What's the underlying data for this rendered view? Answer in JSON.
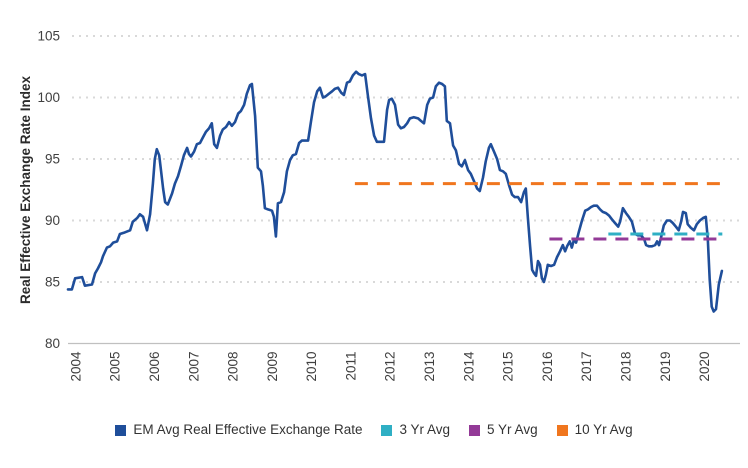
{
  "figure": {
    "y_axis_title": "Real Effective Exchange Rate Index"
  },
  "colors": {
    "main_line": "#1F4E9A",
    "avg_3yr": "#2FAFC4",
    "avg_5yr": "#933A97",
    "avg_10yr": "#F0761E",
    "axis_text": "#404040",
    "gridline": "#D9D9D9",
    "axis_line": "#C0C0C0"
  },
  "chart_data": {
    "type": "line",
    "title": "",
    "xlabel": "",
    "ylabel": "Real Effective Exchange Rate Index",
    "ylim": [
      80,
      105
    ],
    "xlim": [
      2003.8,
      2020.9
    ],
    "y_ticks": [
      80,
      85,
      90,
      95,
      100,
      105
    ],
    "x_ticks": [
      2004,
      2005,
      2006,
      2007,
      2008,
      2009,
      2010,
      2011,
      2012,
      2013,
      2014,
      2015,
      2016,
      2017,
      2018,
      2019,
      2020
    ],
    "grid": "horizontal-dotted",
    "legend_position": "bottom",
    "series": [
      {
        "name": "EM Avg Real Effective Exchange Rate",
        "kind": "line",
        "color": "#1F4E9A",
        "points": [
          [
            2003.8,
            84.4
          ],
          [
            2003.9,
            84.4
          ],
          [
            2003.98,
            85.3
          ],
          [
            2004.16,
            85.4
          ],
          [
            2004.23,
            84.7
          ],
          [
            2004.41,
            84.8
          ],
          [
            2004.49,
            85.7
          ],
          [
            2004.56,
            86.1
          ],
          [
            2004.64,
            86.6
          ],
          [
            2004.69,
            87.1
          ],
          [
            2004.79,
            87.8
          ],
          [
            2004.87,
            87.9
          ],
          [
            2004.95,
            88.2
          ],
          [
            2005.05,
            88.3
          ],
          [
            2005.12,
            88.9
          ],
          [
            2005.22,
            89.0
          ],
          [
            2005.3,
            89.1
          ],
          [
            2005.38,
            89.2
          ],
          [
            2005.45,
            89.9
          ],
          [
            2005.56,
            90.2
          ],
          [
            2005.63,
            90.5
          ],
          [
            2005.71,
            90.3
          ],
          [
            2005.81,
            89.2
          ],
          [
            2005.89,
            90.5
          ],
          [
            2005.96,
            93.0
          ],
          [
            2006.01,
            95.0
          ],
          [
            2006.06,
            95.8
          ],
          [
            2006.12,
            95.3
          ],
          [
            2006.17,
            94.0
          ],
          [
            2006.22,
            92.6
          ],
          [
            2006.27,
            91.5
          ],
          [
            2006.34,
            91.3
          ],
          [
            2006.45,
            92.2
          ],
          [
            2006.52,
            93.0
          ],
          [
            2006.6,
            93.6
          ],
          [
            2006.68,
            94.5
          ],
          [
            2006.75,
            95.3
          ],
          [
            2006.83,
            95.9
          ],
          [
            2006.88,
            95.4
          ],
          [
            2006.93,
            95.2
          ],
          [
            2007.01,
            95.6
          ],
          [
            2007.08,
            96.2
          ],
          [
            2007.16,
            96.3
          ],
          [
            2007.24,
            96.8
          ],
          [
            2007.31,
            97.2
          ],
          [
            2007.39,
            97.5
          ],
          [
            2007.46,
            97.9
          ],
          [
            2007.52,
            96.2
          ],
          [
            2007.59,
            95.9
          ],
          [
            2007.67,
            96.9
          ],
          [
            2007.74,
            97.4
          ],
          [
            2007.82,
            97.6
          ],
          [
            2007.9,
            98.0
          ],
          [
            2007.97,
            97.7
          ],
          [
            2008.05,
            98.0
          ],
          [
            2008.13,
            98.7
          ],
          [
            2008.2,
            98.9
          ],
          [
            2008.28,
            99.4
          ],
          [
            2008.35,
            100.3
          ],
          [
            2008.43,
            101.0
          ],
          [
            2008.48,
            101.1
          ],
          [
            2008.56,
            98.5
          ],
          [
            2008.63,
            94.3
          ],
          [
            2008.71,
            94.0
          ],
          [
            2008.76,
            92.8
          ],
          [
            2008.81,
            91.0
          ],
          [
            2008.89,
            90.9
          ],
          [
            2008.99,
            90.8
          ],
          [
            2009.04,
            90.3
          ],
          [
            2009.09,
            88.7
          ],
          [
            2009.14,
            91.4
          ],
          [
            2009.22,
            91.5
          ],
          [
            2009.3,
            92.3
          ],
          [
            2009.37,
            94.0
          ],
          [
            2009.45,
            94.9
          ],
          [
            2009.52,
            95.3
          ],
          [
            2009.6,
            95.4
          ],
          [
            2009.68,
            96.3
          ],
          [
            2009.75,
            96.5
          ],
          [
            2009.83,
            96.5
          ],
          [
            2009.91,
            96.5
          ],
          [
            2009.98,
            98.0
          ],
          [
            2010.06,
            99.6
          ],
          [
            2010.14,
            100.5
          ],
          [
            2010.21,
            100.8
          ],
          [
            2010.29,
            100.0
          ],
          [
            2010.36,
            100.1
          ],
          [
            2010.44,
            100.3
          ],
          [
            2010.52,
            100.5
          ],
          [
            2010.59,
            100.7
          ],
          [
            2010.67,
            100.8
          ],
          [
            2010.75,
            100.4
          ],
          [
            2010.82,
            100.2
          ],
          [
            2010.9,
            101.2
          ],
          [
            2010.97,
            101.3
          ],
          [
            2011.05,
            101.8
          ],
          [
            2011.13,
            102.1
          ],
          [
            2011.2,
            101.9
          ],
          [
            2011.28,
            101.8
          ],
          [
            2011.36,
            101.9
          ],
          [
            2011.43,
            100.2
          ],
          [
            2011.51,
            98.3
          ],
          [
            2011.59,
            96.9
          ],
          [
            2011.66,
            96.4
          ],
          [
            2011.74,
            96.4
          ],
          [
            2011.84,
            96.4
          ],
          [
            2011.92,
            99.0
          ],
          [
            2011.97,
            99.8
          ],
          [
            2012.04,
            99.9
          ],
          [
            2012.12,
            99.4
          ],
          [
            2012.2,
            97.8
          ],
          [
            2012.27,
            97.5
          ],
          [
            2012.35,
            97.6
          ],
          [
            2012.43,
            97.9
          ],
          [
            2012.5,
            98.3
          ],
          [
            2012.6,
            98.4
          ],
          [
            2012.71,
            98.3
          ],
          [
            2012.78,
            98.1
          ],
          [
            2012.86,
            97.9
          ],
          [
            2012.94,
            99.4
          ],
          [
            2013.01,
            99.9
          ],
          [
            2013.09,
            100.0
          ],
          [
            2013.16,
            100.9
          ],
          [
            2013.24,
            101.2
          ],
          [
            2013.32,
            101.1
          ],
          [
            2013.39,
            100.9
          ],
          [
            2013.44,
            98.1
          ],
          [
            2013.52,
            97.9
          ],
          [
            2013.6,
            96.1
          ],
          [
            2013.67,
            95.7
          ],
          [
            2013.75,
            94.6
          ],
          [
            2013.82,
            94.4
          ],
          [
            2013.9,
            94.9
          ],
          [
            2013.98,
            94.1
          ],
          [
            2014.05,
            93.8
          ],
          [
            2014.13,
            93.2
          ],
          [
            2014.21,
            92.6
          ],
          [
            2014.28,
            92.4
          ],
          [
            2014.36,
            93.5
          ],
          [
            2014.43,
            94.8
          ],
          [
            2014.51,
            95.9
          ],
          [
            2014.56,
            96.2
          ],
          [
            2014.64,
            95.6
          ],
          [
            2014.72,
            95.0
          ],
          [
            2014.79,
            94.1
          ],
          [
            2014.87,
            94.0
          ],
          [
            2014.94,
            93.8
          ],
          [
            2015.02,
            92.9
          ],
          [
            2015.1,
            92.1
          ],
          [
            2015.17,
            91.9
          ],
          [
            2015.25,
            91.9
          ],
          [
            2015.33,
            91.5
          ],
          [
            2015.4,
            92.3
          ],
          [
            2015.45,
            92.6
          ],
          [
            2015.5,
            90.3
          ],
          [
            2015.56,
            87.9
          ],
          [
            2015.61,
            86.0
          ],
          [
            2015.66,
            85.7
          ],
          [
            2015.71,
            85.5
          ],
          [
            2015.76,
            86.7
          ],
          [
            2015.81,
            86.4
          ],
          [
            2015.86,
            85.3
          ],
          [
            2015.91,
            85.0
          ],
          [
            2015.96,
            85.6
          ],
          [
            2016.01,
            86.4
          ],
          [
            2016.09,
            86.3
          ],
          [
            2016.17,
            86.4
          ],
          [
            2016.24,
            87.0
          ],
          [
            2016.32,
            87.5
          ],
          [
            2016.39,
            88.0
          ],
          [
            2016.45,
            87.5
          ],
          [
            2016.5,
            87.9
          ],
          [
            2016.57,
            88.3
          ],
          [
            2016.62,
            87.8
          ],
          [
            2016.68,
            88.5
          ],
          [
            2016.73,
            88.2
          ],
          [
            2016.8,
            89.1
          ],
          [
            2016.88,
            90.0
          ],
          [
            2016.96,
            90.8
          ],
          [
            2017.03,
            90.9
          ],
          [
            2017.11,
            91.1
          ],
          [
            2017.18,
            91.2
          ],
          [
            2017.26,
            91.2
          ],
          [
            2017.34,
            90.9
          ],
          [
            2017.41,
            90.7
          ],
          [
            2017.49,
            90.6
          ],
          [
            2017.57,
            90.4
          ],
          [
            2017.64,
            90.1
          ],
          [
            2017.72,
            89.8
          ],
          [
            2017.8,
            89.5
          ],
          [
            2017.85,
            89.9
          ],
          [
            2017.92,
            91.0
          ],
          [
            2018.0,
            90.6
          ],
          [
            2018.07,
            90.3
          ],
          [
            2018.15,
            89.9
          ],
          [
            2018.23,
            88.9
          ],
          [
            2018.3,
            88.8
          ],
          [
            2018.38,
            88.8
          ],
          [
            2018.46,
            88.5
          ],
          [
            2018.51,
            88.0
          ],
          [
            2018.58,
            87.9
          ],
          [
            2018.66,
            87.9
          ],
          [
            2018.74,
            88.0
          ],
          [
            2018.79,
            88.3
          ],
          [
            2018.84,
            88.0
          ],
          [
            2018.89,
            88.6
          ],
          [
            2018.96,
            89.6
          ],
          [
            2019.04,
            90.0
          ],
          [
            2019.12,
            90.0
          ],
          [
            2019.19,
            89.8
          ],
          [
            2019.27,
            89.5
          ],
          [
            2019.34,
            89.2
          ],
          [
            2019.4,
            89.9
          ],
          [
            2019.45,
            90.7
          ],
          [
            2019.52,
            90.6
          ],
          [
            2019.57,
            89.7
          ],
          [
            2019.65,
            89.4
          ],
          [
            2019.73,
            89.2
          ],
          [
            2019.8,
            89.7
          ],
          [
            2019.88,
            90.0
          ],
          [
            2019.96,
            90.2
          ],
          [
            2020.03,
            90.3
          ],
          [
            2020.08,
            88.5
          ],
          [
            2020.13,
            85.2
          ],
          [
            2020.18,
            83.0
          ],
          [
            2020.23,
            82.6
          ],
          [
            2020.29,
            82.8
          ],
          [
            2020.36,
            84.8
          ],
          [
            2020.44,
            85.9
          ]
        ]
      },
      {
        "name": "3 Yr Avg",
        "kind": "dashed-constant",
        "color": "#2FAFC4",
        "value": 88.9,
        "span": [
          2017.55,
          2020.45
        ]
      },
      {
        "name": "5 Yr Avg",
        "kind": "dashed-constant",
        "color": "#933A97",
        "value": 88.5,
        "span": [
          2016.05,
          2020.45
        ]
      },
      {
        "name": "10 Yr Avg",
        "kind": "dashed-constant",
        "color": "#F0761E",
        "value": 93.0,
        "span": [
          2011.1,
          2020.45
        ]
      }
    ]
  }
}
